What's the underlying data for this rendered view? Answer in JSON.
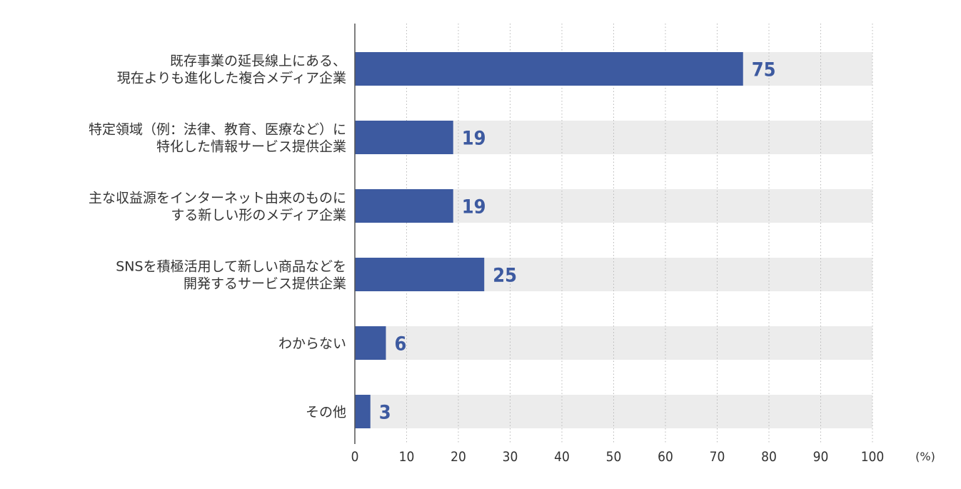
{
  "chart_data": {
    "type": "bar",
    "orientation": "horizontal",
    "categories": [
      [
        "既存事業の延長線上にある、",
        "現在よりも進化した複合メディア企業"
      ],
      [
        "特定領域（例：法律、教育、医療など）に",
        "特化した情報サービス提供企業"
      ],
      [
        "主な収益源をインターネット由来のものに",
        "する新しい形のメディア企業"
      ],
      [
        "SNSを積極活用して新しい商品などを",
        "開発するサービス提供企業"
      ],
      [
        "わからない"
      ],
      [
        "その他"
      ]
    ],
    "values": [
      75,
      19,
      19,
      25,
      6,
      3
    ],
    "xlim": [
      0,
      100
    ],
    "xticks": [
      0,
      10,
      20,
      30,
      40,
      50,
      60,
      70,
      80,
      90,
      100
    ],
    "unit": "(%)",
    "grid": "vertical dotted",
    "colors": {
      "bar": "#3d5aa0",
      "track": "#ececec",
      "value_text": "#3d5aa0",
      "grid": "#b8b8b8",
      "axis": "#555555",
      "text": "#333333"
    }
  }
}
